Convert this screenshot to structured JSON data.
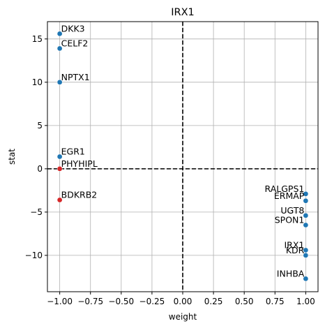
{
  "chart_data": {
    "type": "scatter",
    "title": "IRX1",
    "xlabel": "weight",
    "ylabel": "stat",
    "xlim": [
      -1.1,
      1.1
    ],
    "ylim": [
      -14.2,
      17.0
    ],
    "xticks": [
      -1.0,
      -0.75,
      -0.5,
      -0.25,
      0.0,
      0.25,
      0.5,
      0.75,
      1.0
    ],
    "xtick_labels": [
      "−1.00",
      "−0.75",
      "−0.50",
      "−0.25",
      "0.00",
      "0.25",
      "0.50",
      "0.75",
      "1.00"
    ],
    "yticks": [
      -10,
      -5,
      0,
      5,
      10,
      15
    ],
    "ytick_labels": [
      "−10",
      "−5",
      "0",
      "5",
      "10",
      "15"
    ],
    "grid": true,
    "reference_lines": {
      "x": 0,
      "y": 0,
      "style": "dashed",
      "color": "#000000"
    },
    "colors": {
      "positive_weight": "#1f77b4",
      "neutral": "#1f77b4",
      "highlight": "#d62728"
    },
    "points": [
      {
        "label": "DKK3",
        "x": -1.0,
        "y": 15.6,
        "color": "#1f77b4",
        "label_side": "right"
      },
      {
        "label": "CELF2",
        "x": -1.0,
        "y": 13.9,
        "color": "#1f77b4",
        "label_side": "right"
      },
      {
        "label": "NPTX1",
        "x": -1.0,
        "y": 10.0,
        "color": "#1f77b4",
        "label_side": "right"
      },
      {
        "label": "EGR1",
        "x": -1.0,
        "y": 1.4,
        "color": "#1f77b4",
        "label_side": "right"
      },
      {
        "label": "PHYHIPL",
        "x": -1.0,
        "y": 0.0,
        "color": "#d62728",
        "label_side": "right"
      },
      {
        "label": "BDKRB2",
        "x": -1.0,
        "y": -3.6,
        "color": "#d62728",
        "label_side": "right"
      },
      {
        "label": "RALGPS1",
        "x": 1.0,
        "y": -2.9,
        "color": "#1f77b4",
        "label_side": "left"
      },
      {
        "label": "ERMAP",
        "x": 1.0,
        "y": -3.7,
        "color": "#1f77b4",
        "label_side": "left"
      },
      {
        "label": "UGT8",
        "x": 1.0,
        "y": -5.4,
        "color": "#1f77b4",
        "label_side": "left"
      },
      {
        "label": "SPON1",
        "x": 1.0,
        "y": -6.5,
        "color": "#1f77b4",
        "label_side": "left"
      },
      {
        "label": "IRX1",
        "x": 1.0,
        "y": -9.4,
        "color": "#1f77b4",
        "label_side": "left"
      },
      {
        "label": "KDR",
        "x": 1.0,
        "y": -10.0,
        "color": "#1f77b4",
        "label_side": "left"
      },
      {
        "label": "INHBA",
        "x": 1.0,
        "y": -12.7,
        "color": "#1f77b4",
        "label_side": "left"
      }
    ]
  }
}
